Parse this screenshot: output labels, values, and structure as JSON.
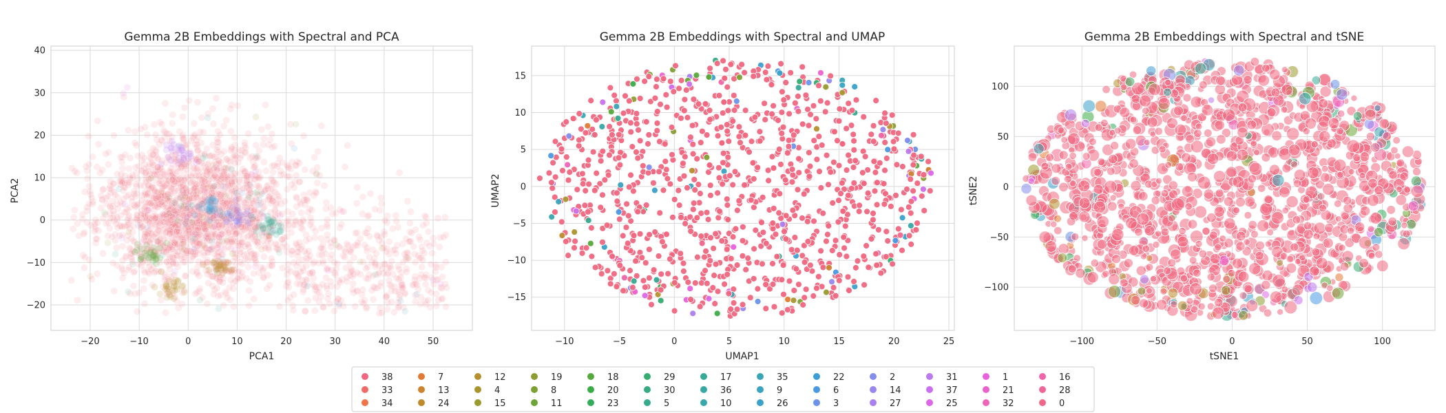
{
  "colors": {
    "grid": "#d9d9d9",
    "axes_edge": "#cccccc",
    "legend_edge": "#cccccc",
    "dominant": "#f0677f"
  },
  "legend": {
    "placement": "bottom-center",
    "ncol": 13,
    "entries": [
      {
        "label": "38",
        "color": "#f0677f"
      },
      {
        "label": "33",
        "color": "#f36b68"
      },
      {
        "label": "34",
        "color": "#f17449"
      },
      {
        "label": "7",
        "color": "#e27a33"
      },
      {
        "label": "13",
        "color": "#cf832e"
      },
      {
        "label": "24",
        "color": "#be8a2c"
      },
      {
        "label": "12",
        "color": "#b5902c"
      },
      {
        "label": "4",
        "color": "#a8962d"
      },
      {
        "label": "15",
        "color": "#9a9a2f"
      },
      {
        "label": "19",
        "color": "#8c9d31"
      },
      {
        "label": "8",
        "color": "#7da133"
      },
      {
        "label": "11",
        "color": "#6ba535"
      },
      {
        "label": "18",
        "color": "#56a93b"
      },
      {
        "label": "20",
        "color": "#3aac46"
      },
      {
        "label": "23",
        "color": "#34ad5b"
      },
      {
        "label": "29",
        "color": "#34ad70"
      },
      {
        "label": "30",
        "color": "#35ac80"
      },
      {
        "label": "5",
        "color": "#35ab8d"
      },
      {
        "label": "17",
        "color": "#36aa98"
      },
      {
        "label": "36",
        "color": "#37a8a3"
      },
      {
        "label": "10",
        "color": "#37a7ac"
      },
      {
        "label": "35",
        "color": "#38a5b6"
      },
      {
        "label": "9",
        "color": "#39a3c0"
      },
      {
        "label": "26",
        "color": "#3aa1cb"
      },
      {
        "label": "22",
        "color": "#3c9ed6"
      },
      {
        "label": "6",
        "color": "#4a99e3"
      },
      {
        "label": "3",
        "color": "#6a93ea"
      },
      {
        "label": "2",
        "color": "#838ded"
      },
      {
        "label": "14",
        "color": "#9787ee"
      },
      {
        "label": "27",
        "color": "#a980ef"
      },
      {
        "label": "31",
        "color": "#bb78ef"
      },
      {
        "label": "37",
        "color": "#cc6fee"
      },
      {
        "label": "25",
        "color": "#dc66e8"
      },
      {
        "label": "1",
        "color": "#e960dd"
      },
      {
        "label": "21",
        "color": "#ec62cc"
      },
      {
        "label": "32",
        "color": "#ee64ba"
      },
      {
        "label": "16",
        "color": "#ef65a8"
      },
      {
        "label": "28",
        "color": "#f06696"
      },
      {
        "label": "0",
        "color": "#f0678a"
      }
    ]
  },
  "chart_data": [
    {
      "type": "scatter",
      "title": "Gemma 2B Embeddings with Spectral and PCA",
      "xlabel": "PCA1",
      "ylabel": "PCA2",
      "xlim": [
        -28,
        58
      ],
      "ylim": [
        -26,
        41
      ],
      "xticks": [
        -20,
        -10,
        0,
        10,
        20,
        30,
        40,
        50
      ],
      "yticks": [
        -20,
        -10,
        0,
        10,
        20,
        30,
        40
      ],
      "grid": true,
      "point_alpha": 0.12,
      "cloud": {
        "description_points": "dense overlapping cloud, mostly cluster 38",
        "x_range": [
          -24,
          55
        ],
        "y_range": [
          -22,
          37
        ],
        "center": [
          2,
          2
        ]
      },
      "highlighted_regions": [
        {
          "cluster": "18",
          "x": -8,
          "y": -8
        },
        {
          "cluster": "22",
          "x": 5,
          "y": 3
        },
        {
          "cluster": "14",
          "x": 10,
          "y": 1
        },
        {
          "cluster": "17",
          "x": 17,
          "y": -2
        },
        {
          "cluster": "24",
          "x": 7,
          "y": -11
        },
        {
          "cluster": "31",
          "x": -2,
          "y": 16
        },
        {
          "cluster": "12",
          "x": -3,
          "y": -16
        }
      ]
    },
    {
      "type": "scatter",
      "title": "Gemma 2B Embeddings with Spectral and UMAP",
      "xlabel": "UMAP1",
      "ylabel": "UMAP2",
      "xlim": [
        -13,
        25.5
      ],
      "ylim": [
        -19.5,
        19
      ],
      "xticks": [
        -10,
        -5,
        0,
        5,
        10,
        15,
        20,
        25
      ],
      "yticks": [
        -15,
        -10,
        -5,
        0,
        5,
        10,
        15
      ],
      "grid": true,
      "point_alpha": 0.95,
      "cloud": {
        "shape": "ellipse",
        "center": [
          5.5,
          -0.2
        ],
        "radius_x": 18,
        "radius_y": 17.5
      }
    },
    {
      "type": "scatter",
      "title": "Gemma 2B Embeddings with Spectral and tSNE",
      "xlabel": "tSNE1",
      "ylabel": "tSNE2",
      "xlim": [
        -145,
        135
      ],
      "ylim": [
        -143,
        140
      ],
      "xticks": [
        -100,
        -50,
        0,
        50,
        100
      ],
      "yticks": [
        -100,
        -50,
        0,
        50,
        100
      ],
      "grid": true,
      "point_alpha": 0.55,
      "cloud": {
        "shape": "ellipse",
        "center": [
          -5,
          -2
        ],
        "radius_x": 133,
        "radius_y": 128
      }
    }
  ]
}
